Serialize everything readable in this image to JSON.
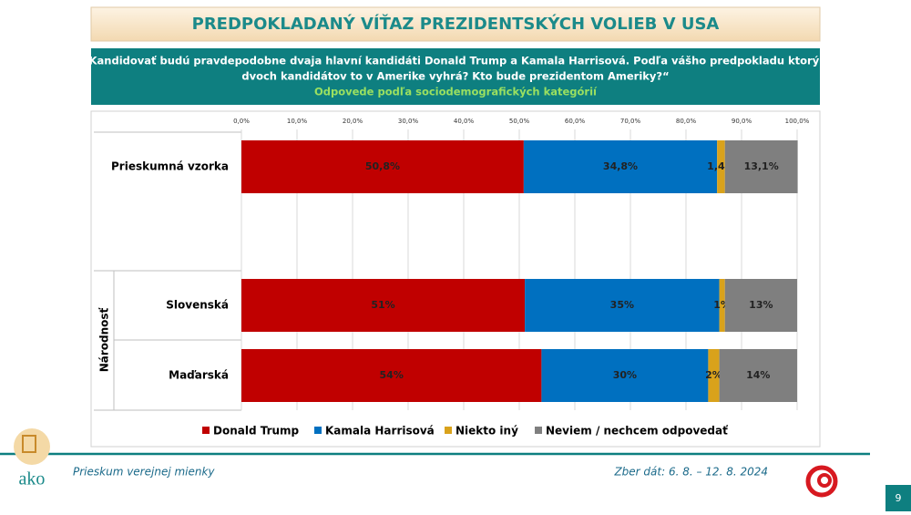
{
  "header": {
    "title": "PREDPOKLADANÝ VÍŤAZ PREZIDENTSKÝCH VOLIEB V USA",
    "question_line1": "„Kandidovať budú pravdepodobne dvaja hlavní kandidáti Donald Trump a Kamala Harrisová. Podľa vášho predpokladu ktorý z",
    "question_line2": "dvoch kandidátov to v Amerike vyhrá? Kto bude prezidentom Ameriky?“",
    "subtitle": "Odpovede podľa sociodemografických kategórií"
  },
  "chart_data": {
    "type": "stacked_barh",
    "categories": [
      "Prieskumná vzorka",
      "Slovenská",
      "Maďarská"
    ],
    "group_label": "Národnosť",
    "series": [
      {
        "name": "Donald Trump",
        "color": "#c00000",
        "values": [
          50.8,
          51,
          54
        ],
        "value_labels": [
          "50,8%",
          "51%",
          "54%"
        ]
      },
      {
        "name": "Kamala Harrisová",
        "color": "#0070c0",
        "values": [
          34.8,
          35,
          30
        ],
        "value_labels": [
          "34,8%",
          "35%",
          "30%"
        ]
      },
      {
        "name": "Niekto iný",
        "color": "#d9a21b",
        "values": [
          1.4,
          1,
          2
        ],
        "value_labels": [
          "1,4%",
          "1%",
          "2%"
        ]
      },
      {
        "name": "Neviem / nechcem odpovedať",
        "color": "#7f7f7f",
        "values": [
          13.1,
          13,
          14
        ],
        "value_labels": [
          "13,1%",
          "13%",
          "14%"
        ]
      }
    ],
    "xlim": [
      0,
      100
    ],
    "xticks": [
      {
        "value": 0,
        "label": "0,0%"
      },
      {
        "value": 10,
        "label": "10,0%"
      },
      {
        "value": 20,
        "label": "20,0%"
      },
      {
        "value": 30,
        "label": "30,0%"
      },
      {
        "value": 40,
        "label": "40,0%"
      },
      {
        "value": 50,
        "label": "50,0%"
      },
      {
        "value": 60,
        "label": "60,0%"
      },
      {
        "value": 70,
        "label": "70,0%"
      },
      {
        "value": 80,
        "label": "80,0%"
      },
      {
        "value": 90,
        "label": "90,0%"
      },
      {
        "value": 100,
        "label": "100,0%"
      }
    ],
    "grid": true
  },
  "footer": {
    "left": "Prieskum verejnej mienky",
    "right": "Zber dát: 6. 8. – 12. 8. 2024",
    "page": "9",
    "logo": "ako"
  }
}
